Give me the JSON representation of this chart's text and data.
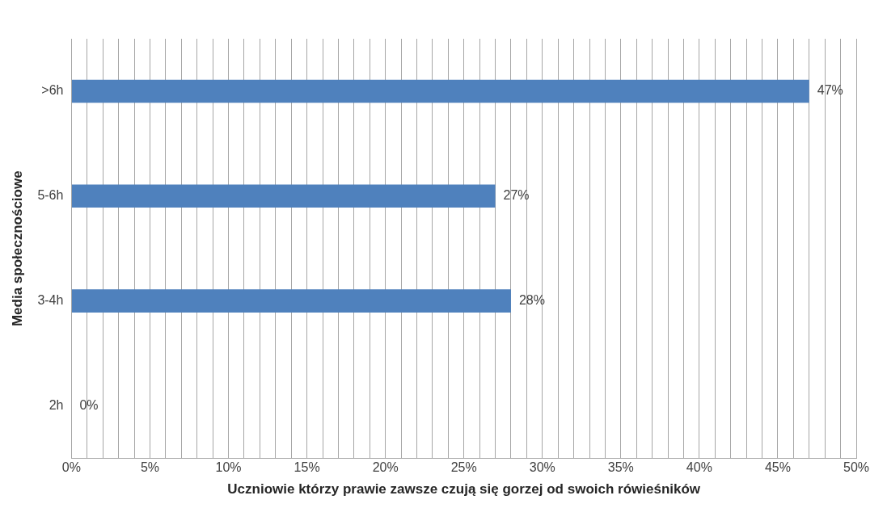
{
  "chart_data": {
    "type": "bar",
    "orientation": "horizontal",
    "xlabel": "Uczniowie którzy prawie zawsze czują się gorzej od swoich rówieśników",
    "ylabel": "Media społecznościowe",
    "categories": [
      ">6h",
      "5-6h",
      "3-4h",
      "2h"
    ],
    "values": [
      47,
      27,
      28,
      0
    ],
    "color": "#4f81bd",
    "value_labels": [
      "47%",
      "27%",
      "28%",
      "0%"
    ],
    "xlim": [
      0,
      50
    ],
    "xticks": [
      {
        "value": 0,
        "label": "0%"
      },
      {
        "value": 1,
        "label": null
      },
      {
        "value": 2,
        "label": null
      },
      {
        "value": 3,
        "label": null
      },
      {
        "value": 4,
        "label": null
      },
      {
        "value": 5,
        "label": "5%"
      },
      {
        "value": 6,
        "label": null
      },
      {
        "value": 7,
        "label": null
      },
      {
        "value": 8,
        "label": null
      },
      {
        "value": 9,
        "label": null
      },
      {
        "value": 10,
        "label": "10%"
      },
      {
        "value": 11,
        "label": null
      },
      {
        "value": 12,
        "label": null
      },
      {
        "value": 13,
        "label": null
      },
      {
        "value": 14,
        "label": null
      },
      {
        "value": 15,
        "label": "15%"
      },
      {
        "value": 16,
        "label": null
      },
      {
        "value": 17,
        "label": null
      },
      {
        "value": 18,
        "label": null
      },
      {
        "value": 19,
        "label": null
      },
      {
        "value": 20,
        "label": "20%"
      },
      {
        "value": 21,
        "label": null
      },
      {
        "value": 22,
        "label": null
      },
      {
        "value": 23,
        "label": null
      },
      {
        "value": 24,
        "label": null
      },
      {
        "value": 25,
        "label": "25%"
      },
      {
        "value": 26,
        "label": null
      },
      {
        "value": 27,
        "label": null
      },
      {
        "value": 28,
        "label": null
      },
      {
        "value": 29,
        "label": null
      },
      {
        "value": 30,
        "label": "30%"
      },
      {
        "value": 31,
        "label": null
      },
      {
        "value": 32,
        "label": null
      },
      {
        "value": 33,
        "label": null
      },
      {
        "value": 34,
        "label": null
      },
      {
        "value": 35,
        "label": "35%"
      },
      {
        "value": 36,
        "label": null
      },
      {
        "value": 37,
        "label": null
      },
      {
        "value": 38,
        "label": null
      },
      {
        "value": 39,
        "label": null
      },
      {
        "value": 40,
        "label": "40%"
      },
      {
        "value": 41,
        "label": null
      },
      {
        "value": 42,
        "label": null
      },
      {
        "value": 43,
        "label": null
      },
      {
        "value": 44,
        "label": null
      },
      {
        "value": 45,
        "label": "45%"
      },
      {
        "value": 46,
        "label": null
      },
      {
        "value": 47,
        "label": null
      },
      {
        "value": 48,
        "label": null
      },
      {
        "value": 49,
        "label": null
      },
      {
        "value": 50,
        "label": "50%"
      }
    ],
    "grid": "x",
    "legend": false
  }
}
